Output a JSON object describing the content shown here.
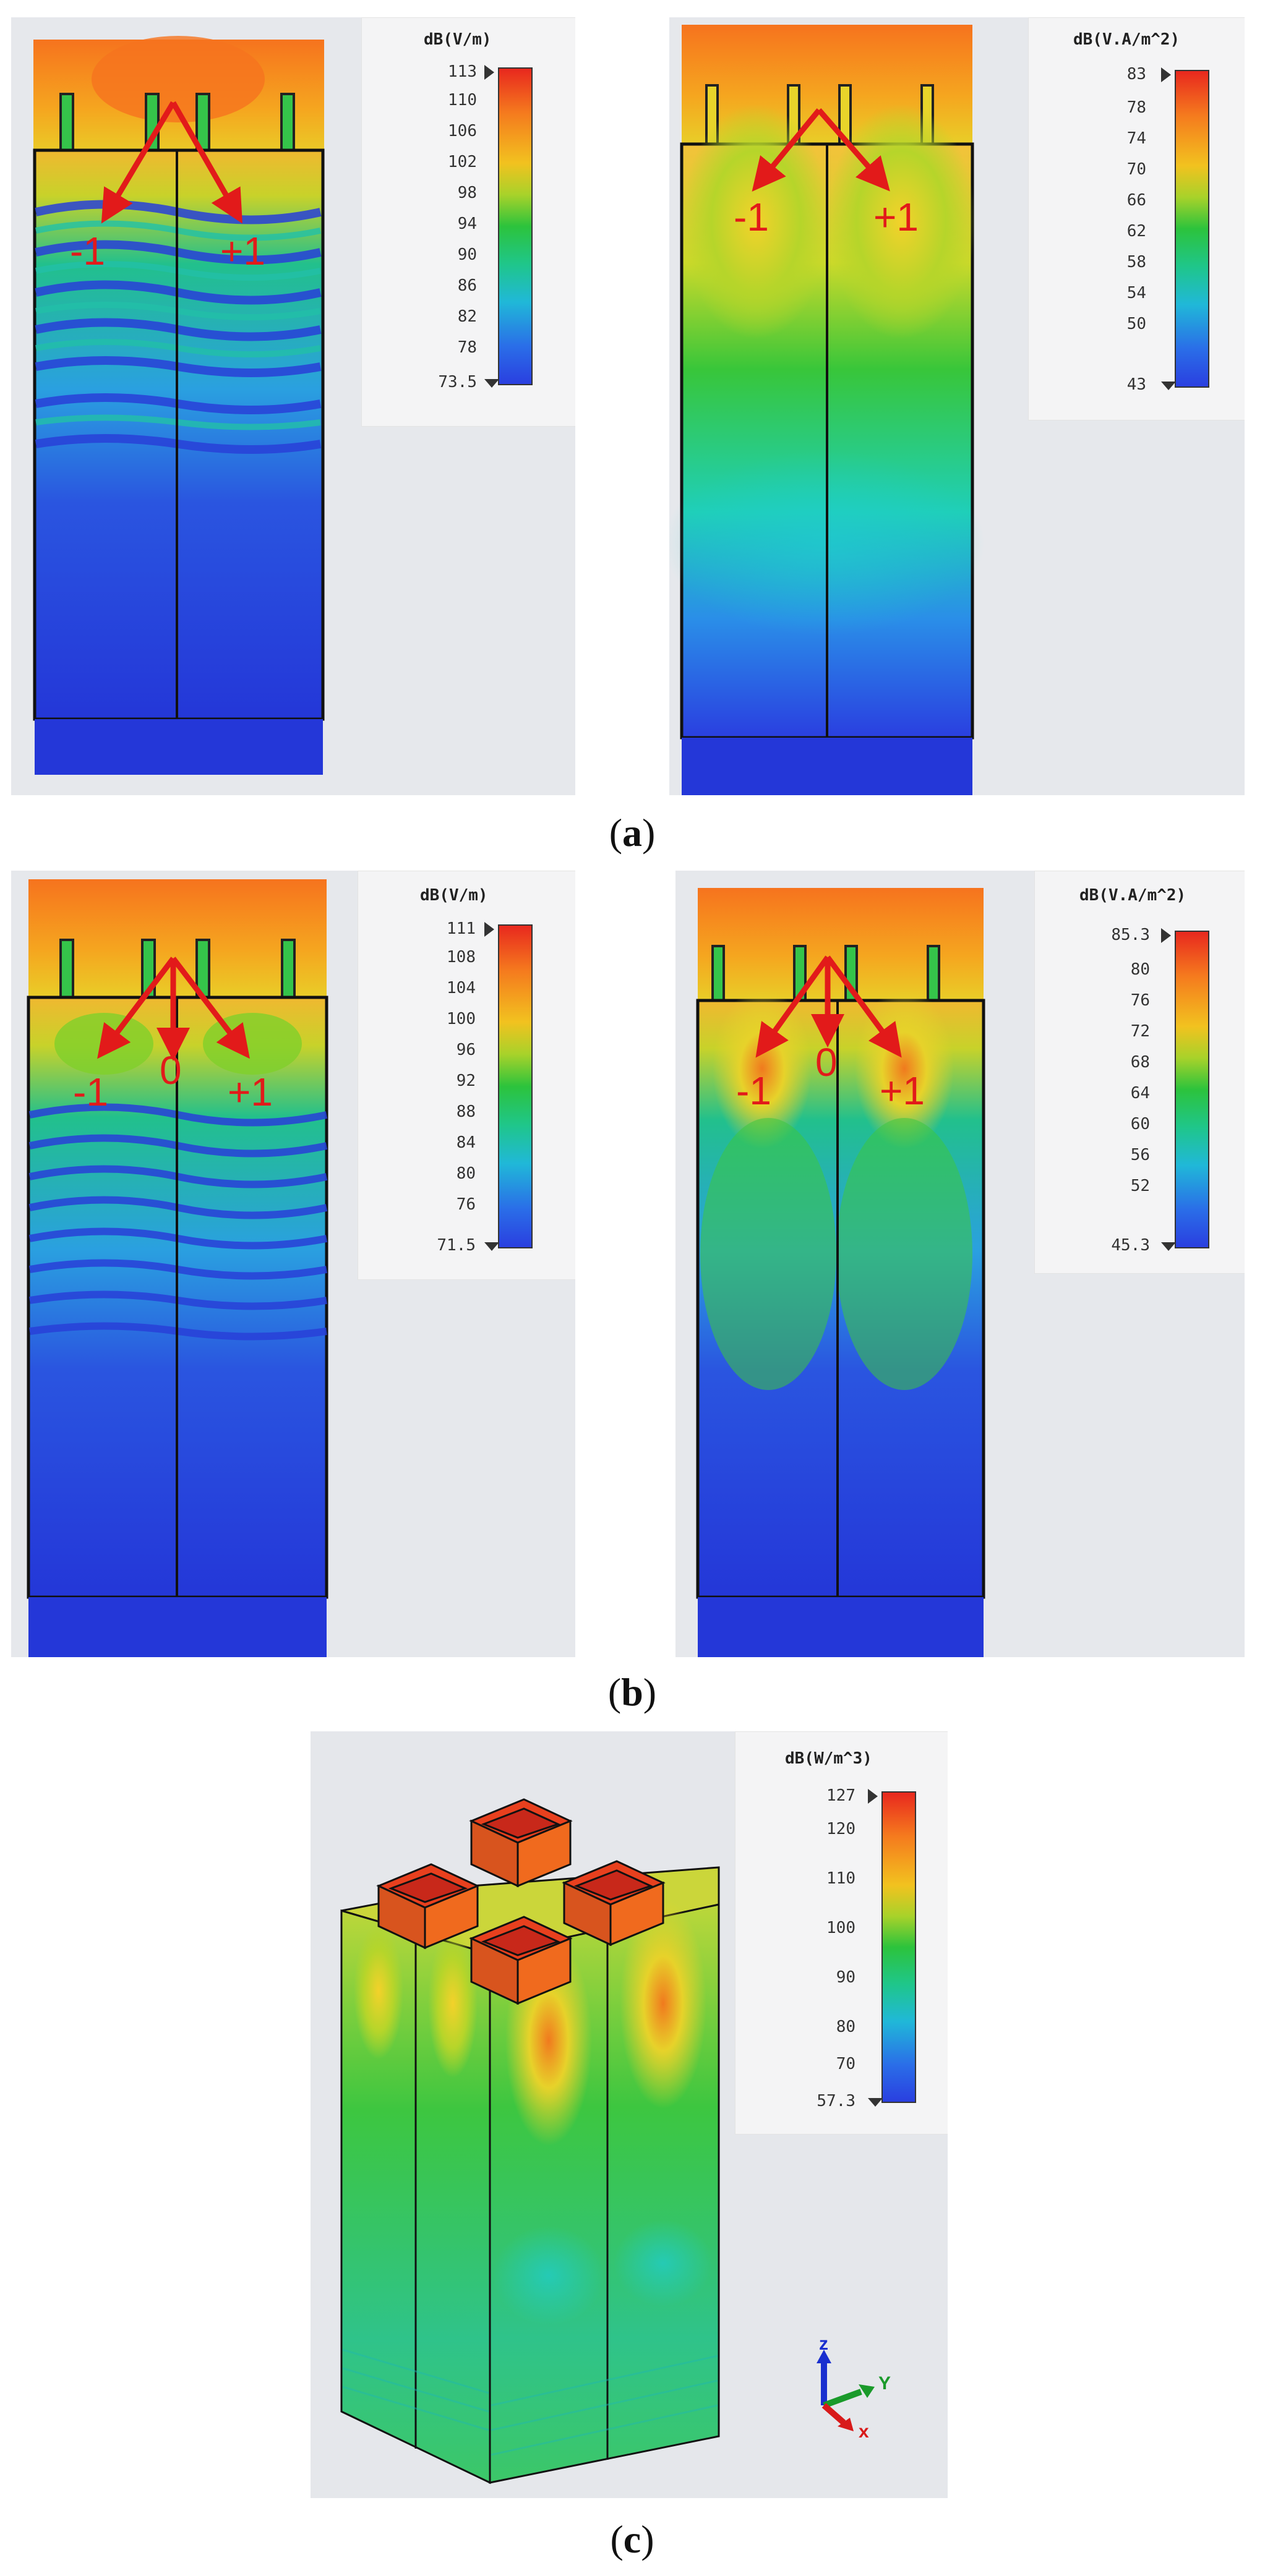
{
  "figure": {
    "panels": [
      {
        "id": "a-left",
        "legend": {
          "unit": "dB(V/m)",
          "max": "113",
          "ticks": [
            "110",
            "106",
            "102",
            "98",
            "94",
            "90",
            "86",
            "82",
            "78"
          ],
          "min": "73.5"
        },
        "orders": [
          "-1",
          "+1"
        ]
      },
      {
        "id": "a-right",
        "legend": {
          "unit": "dB(V.A/m^2)",
          "max": "83",
          "ticks": [
            "78",
            "74",
            "70",
            "66",
            "62",
            "58",
            "54",
            "50"
          ],
          "min": "43"
        },
        "orders": [
          "-1",
          "+1"
        ]
      },
      {
        "id": "b-left",
        "legend": {
          "unit": "dB(V/m)",
          "max": "111",
          "ticks": [
            "108",
            "104",
            "100",
            "96",
            "92",
            "88",
            "84",
            "80",
            "76"
          ],
          "min": "71.5"
        },
        "orders": [
          "-1",
          "0",
          "+1"
        ]
      },
      {
        "id": "b-right",
        "legend": {
          "unit": "dB(V.A/m^2)",
          "max": "85.3",
          "ticks": [
            "80",
            "76",
            "72",
            "68",
            "64",
            "60",
            "56",
            "52"
          ],
          "min": "45.3"
        },
        "orders": [
          "-1",
          "0",
          "+1"
        ]
      },
      {
        "id": "c",
        "legend": {
          "unit": "dB(W/m^3)",
          "max": "127",
          "ticks": [
            "120",
            "110",
            "100",
            "90",
            "80",
            "70"
          ],
          "min": "57.3"
        },
        "axes": {
          "z": "z",
          "y": "Y",
          "x": "x"
        }
      }
    ],
    "captions": {
      "a": "a",
      "b": "b",
      "c": "c"
    },
    "colors": {
      "arrow": "#e21a1a",
      "hot": "#f07a1e",
      "mid": "#2cc33c",
      "cold": "#2a3fe0"
    }
  }
}
